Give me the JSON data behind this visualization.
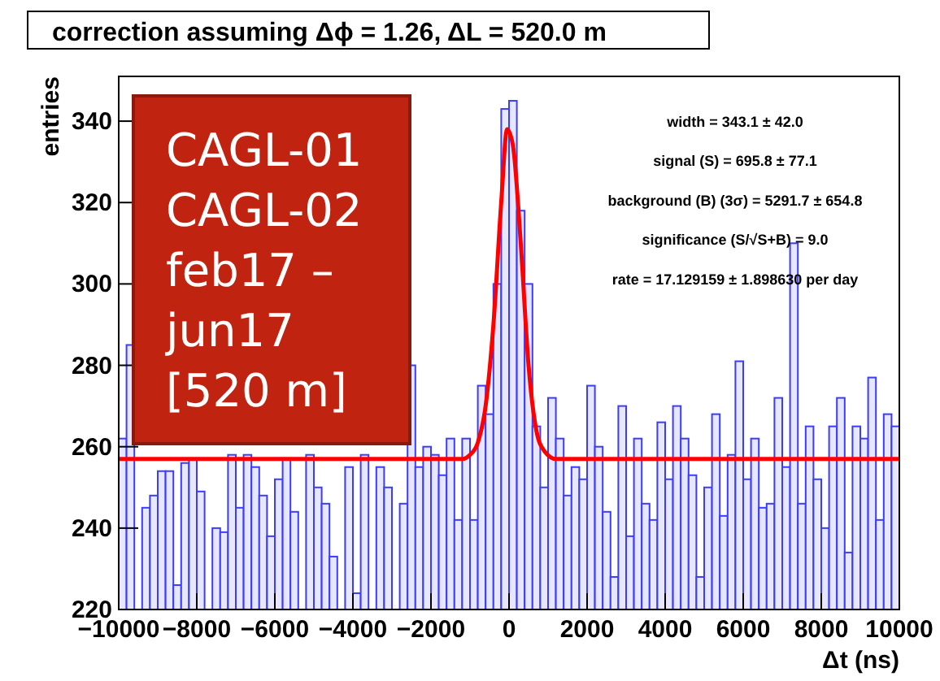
{
  "chart_data": {
    "type": "histogram",
    "title": "correction assuming Δϕ = 1.26, ΔL = 520.0 m",
    "xlabel": "Δt (ns)",
    "ylabel": "entries",
    "xlim": [
      -10000,
      10000
    ],
    "ylim": [
      220,
      351
    ],
    "xticks": [
      -10000,
      -8000,
      -6000,
      -4000,
      -2000,
      0,
      2000,
      4000,
      6000,
      8000,
      10000
    ],
    "yticks": [
      220,
      240,
      260,
      280,
      300,
      320,
      340
    ],
    "grid": false,
    "annotations": [
      "CAGL-01\nCAGL-02\nfeb17 –\njun17\n[520 m]",
      "width = 343.1 ±  42.0",
      "signal (S) = 695.8 ±  77.1",
      "background (B) (3σ) = 5291.7  ± 654.8",
      "significance (S/√S+B) =   9.0",
      "rate = 17.129159 ± 1.898630 per day"
    ],
    "series": [
      {
        "color": "#3c3cff",
        "bins": [
          -10000,
          -9800,
          -9600,
          -9400,
          -9200,
          -9000,
          -8800,
          -8600,
          -8400,
          -8200,
          -8000,
          -7800,
          -7600,
          -7400,
          -7200,
          -7000,
          -6800,
          -6600,
          -6400,
          -6200,
          -6000,
          -5800,
          -5600,
          -5400,
          -5200,
          -5000,
          -4800,
          -4600,
          -4400,
          -4200,
          -4000,
          -3800,
          -3600,
          -3400,
          -3200,
          -3000,
          -2800,
          -2600,
          -2400,
          -2200,
          -2000,
          -1800,
          -1600,
          -1400,
          -1200,
          -1000,
          -800,
          -600,
          -400,
          -200,
          0,
          200,
          400,
          600,
          800,
          1000,
          1200,
          1400,
          1600,
          1800,
          2000,
          2200,
          2400,
          2600,
          2800,
          3000,
          3200,
          3400,
          3600,
          3800,
          4000,
          4200,
          4400,
          4600,
          4800,
          5000,
          5200,
          5400,
          5600,
          5800,
          6000,
          6200,
          6400,
          6600,
          6800,
          7000,
          7200,
          7400,
          7600,
          7800,
          8000,
          8200,
          8400,
          8600,
          8800,
          9000,
          9200,
          9400,
          9600,
          9800,
          10000
        ],
        "values": [
          262,
          285,
          null,
          245,
          248,
          254,
          254,
          226,
          256,
          257,
          249,
          null,
          240,
          239,
          258,
          245,
          258,
          255,
          248,
          238,
          252,
          257,
          244,
          null,
          258,
          250,
          246,
          233,
          null,
          255,
          224,
          258,
          null,
          255,
          250,
          null,
          246,
          280,
          255,
          260,
          258,
          253,
          262,
          242,
          262,
          242,
          275,
          268,
          300,
          343,
          345,
          318,
          300,
          265,
          250,
          272,
          262,
          248,
          255,
          252,
          275,
          260,
          244,
          228,
          270,
          238,
          262,
          246,
          242,
          266,
          252,
          270,
          262,
          253,
          228,
          250,
          268,
          243,
          258,
          281,
          252,
          262,
          245,
          246,
          272,
          255,
          310,
          246,
          265,
          252,
          240,
          265,
          272,
          234,
          265,
          262,
          277,
          242,
          268,
          265
        ]
      },
      {
        "type": "line",
        "color": "#ff0000",
        "x": [
          -10000,
          -1200,
          -1000,
          -800,
          -600,
          -400,
          -200,
          -50,
          100,
          300,
          500,
          700,
          900,
          1200,
          10000
        ],
        "values": [
          257,
          257,
          258,
          261,
          270,
          290,
          320,
          338,
          334,
          310,
          280,
          264,
          259,
          257,
          257
        ]
      }
    ]
  }
}
